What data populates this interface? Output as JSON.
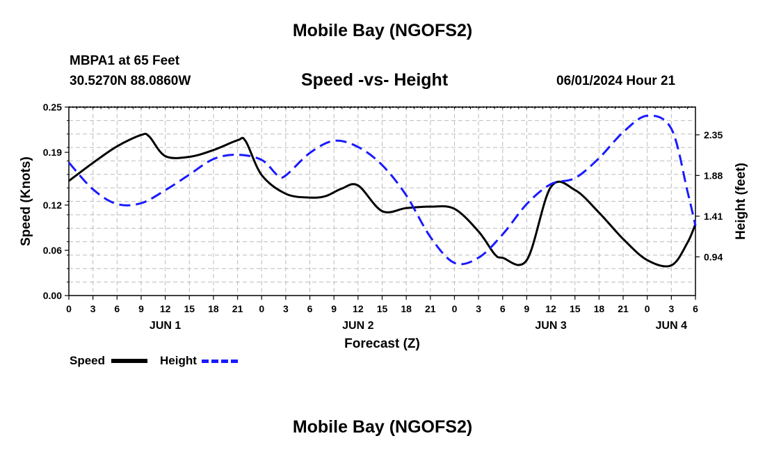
{
  "page": {
    "title": "Mobile Bay (NGOFS2)",
    "footer_title": "Mobile Bay (NGOFS2)",
    "station": "MBPA1 at 65 Feet",
    "coords": "30.5270N  88.0860W",
    "subtitle": "Speed -vs- Height",
    "datetime": "06/01/2024 Hour 21"
  },
  "legend": {
    "speed_label": "Speed",
    "height_label": "Height"
  },
  "colors": {
    "speed": "#000000",
    "height": "#1a1aff",
    "grid": "#bbbbbb"
  },
  "chart_data": {
    "type": "line",
    "xlabel": "Forecast (Z)",
    "ylabel": "Speed (Knots)",
    "y2label": "Height (feet)",
    "xlim": [
      0,
      78
    ],
    "ylim": [
      0,
      0.25
    ],
    "y2lim": [
      0.493,
      2.67
    ],
    "x_ticks": [
      0,
      3,
      6,
      9,
      12,
      15,
      18,
      21,
      24,
      27,
      30,
      33,
      36,
      39,
      42,
      45,
      48,
      51,
      54,
      57,
      60,
      63,
      66,
      69,
      72,
      75,
      78
    ],
    "x_tick_labels": [
      "0",
      "3",
      "6",
      "9",
      "12",
      "15",
      "18",
      "21",
      "0",
      "3",
      "6",
      "9",
      "12",
      "15",
      "18",
      "21",
      "0",
      "3",
      "6",
      "9",
      "12",
      "15",
      "18",
      "21",
      "0",
      "3",
      "6"
    ],
    "y_ticks": [
      0,
      0.06,
      0.12,
      0.19,
      0.25
    ],
    "y_tick_labels": [
      "0.00",
      "0.06",
      "0.12",
      "0.19",
      "0.25"
    ],
    "y2_ticks": [
      0.94,
      1.41,
      1.88,
      2.35
    ],
    "y2_tick_labels": [
      "0.94",
      "1.41",
      "1.88",
      "2.35"
    ],
    "day_labels": [
      {
        "x": 12,
        "label": "JUN 1"
      },
      {
        "x": 36,
        "label": "JUN 2"
      },
      {
        "x": 60,
        "label": "JUN 3"
      },
      {
        "x": 75,
        "label": "JUN 4"
      }
    ],
    "grid": true,
    "series": [
      {
        "name": "Speed",
        "axis": "left",
        "x": [
          0,
          3,
          6,
          9,
          10,
          12,
          15,
          18,
          21,
          22,
          24,
          27,
          30,
          32,
          34,
          36,
          39,
          42,
          45,
          48,
          51,
          53,
          54,
          57,
          60,
          63,
          66,
          69,
          72,
          75,
          77,
          78
        ],
        "values": [
          0.152,
          0.176,
          0.198,
          0.213,
          0.211,
          0.185,
          0.184,
          0.193,
          0.206,
          0.205,
          0.16,
          0.135,
          0.13,
          0.132,
          0.142,
          0.146,
          0.112,
          0.116,
          0.118,
          0.115,
          0.085,
          0.055,
          0.05,
          0.047,
          0.144,
          0.14,
          0.11,
          0.075,
          0.047,
          0.04,
          0.07,
          0.095
        ]
      },
      {
        "name": "Height",
        "axis": "right",
        "x": [
          0,
          3,
          6,
          9,
          12,
          15,
          18,
          21,
          24,
          26,
          27,
          30,
          33,
          36,
          39,
          42,
          45,
          48,
          51,
          54,
          57,
          60,
          63,
          66,
          69,
          72,
          75,
          77,
          78
        ],
        "values": [
          2.03,
          1.72,
          1.55,
          1.56,
          1.71,
          1.89,
          2.07,
          2.12,
          2.06,
          1.88,
          1.88,
          2.14,
          2.28,
          2.21,
          2.0,
          1.65,
          1.17,
          0.87,
          0.93,
          1.2,
          1.55,
          1.78,
          1.85,
          2.08,
          2.38,
          2.57,
          2.42,
          1.7,
          1.3
        ]
      }
    ]
  }
}
